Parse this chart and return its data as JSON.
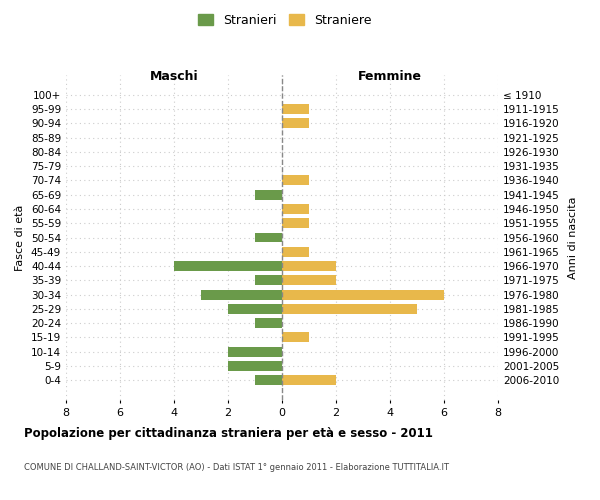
{
  "age_groups": [
    "100+",
    "95-99",
    "90-94",
    "85-89",
    "80-84",
    "75-79",
    "70-74",
    "65-69",
    "60-64",
    "55-59",
    "50-54",
    "45-49",
    "40-44",
    "35-39",
    "30-34",
    "25-29",
    "20-24",
    "15-19",
    "10-14",
    "5-9",
    "0-4"
  ],
  "birth_years": [
    "≤ 1910",
    "1911-1915",
    "1916-1920",
    "1921-1925",
    "1926-1930",
    "1931-1935",
    "1936-1940",
    "1941-1945",
    "1946-1950",
    "1951-1955",
    "1956-1960",
    "1961-1965",
    "1966-1970",
    "1971-1975",
    "1976-1980",
    "1981-1985",
    "1986-1990",
    "1991-1995",
    "1996-2000",
    "2001-2005",
    "2006-2010"
  ],
  "maschi": [
    0,
    0,
    0,
    0,
    0,
    0,
    0,
    1,
    0,
    0,
    1,
    0,
    4,
    1,
    3,
    2,
    1,
    0,
    2,
    2,
    1
  ],
  "femmine": [
    0,
    1,
    1,
    0,
    0,
    0,
    1,
    0,
    1,
    1,
    0,
    1,
    2,
    2,
    6,
    5,
    0,
    1,
    0,
    0,
    2
  ],
  "maschi_color": "#6a9a4a",
  "femmine_color": "#e8b84b",
  "title": "Popolazione per cittadinanza straniera per età e sesso - 2011",
  "subtitle": "COMUNE DI CHALLAND-SAINT-VICTOR (AO) - Dati ISTAT 1° gennaio 2011 - Elaborazione TUTTITALIA.IT",
  "legend_maschi": "Stranieri",
  "legend_femmine": "Straniere",
  "ylabel_left": "Fasce di età",
  "ylabel_right": "Anni di nascita",
  "xlabel_left": "Maschi",
  "xlabel_right": "Femmine",
  "xlim": 8,
  "bg_color": "#ffffff",
  "grid_color": "#cccccc"
}
